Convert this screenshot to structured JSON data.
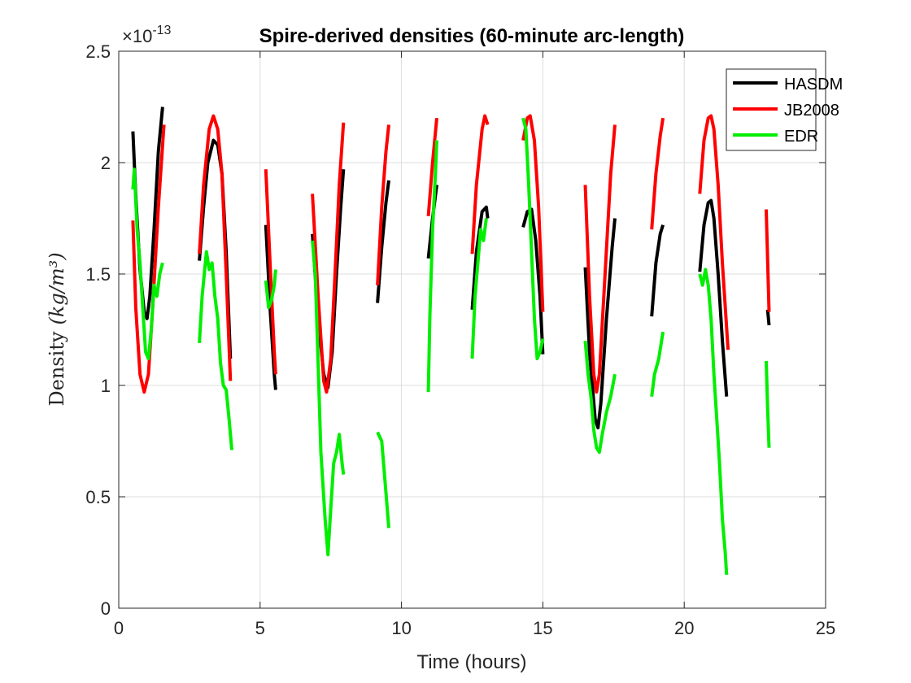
{
  "chart_data": {
    "type": "line",
    "title": "Spire-derived densities (60-minute arc-length)",
    "xlabel": "Time (hours)",
    "ylabel_prefix": "Density",
    "ylabel_units": "(kg/m³)",
    "y_multiplier_base": "×10",
    "y_multiplier_exp": "-13",
    "xlim": [
      0,
      25
    ],
    "ylim": [
      0,
      2.5
    ],
    "xticks": [
      0,
      5,
      10,
      15,
      20,
      25
    ],
    "xtick_labels": [
      "0",
      "5",
      "10",
      "15",
      "20",
      "25"
    ],
    "yticks": [
      0,
      0.5,
      1,
      1.5,
      2,
      2.5
    ],
    "ytick_labels": [
      "0",
      "0.5",
      "1",
      "1.5",
      "2",
      "2.5"
    ],
    "grid": true,
    "legend_position": "top-right",
    "series": [
      {
        "name": "HASDM",
        "color": "#000000",
        "segments": [
          [
            [
              0.5,
              2.14
            ],
            [
              0.6,
              1.85
            ],
            [
              0.75,
              1.52
            ],
            [
              0.9,
              1.33
            ],
            [
              1.0,
              1.3
            ],
            [
              1.1,
              1.4
            ],
            [
              1.25,
              1.7
            ],
            [
              1.4,
              2.05
            ],
            [
              1.55,
              2.25
            ]
          ],
          [
            [
              2.85,
              1.56
            ],
            [
              3.0,
              1.8
            ],
            [
              3.15,
              2.0
            ],
            [
              3.35,
              2.1
            ],
            [
              3.5,
              2.08
            ],
            [
              3.65,
              1.95
            ],
            [
              3.8,
              1.6
            ],
            [
              3.95,
              1.12
            ]
          ],
          [
            [
              5.2,
              1.72
            ],
            [
              5.35,
              1.35
            ],
            [
              5.5,
              1.05
            ],
            [
              5.55,
              0.98
            ]
          ],
          [
            [
              6.85,
              1.68
            ],
            [
              7.05,
              1.3
            ],
            [
              7.25,
              1.05
            ],
            [
              7.4,
              0.99
            ],
            [
              7.55,
              1.15
            ],
            [
              7.7,
              1.5
            ],
            [
              7.85,
              1.8
            ],
            [
              7.95,
              1.97
            ]
          ],
          [
            [
              9.15,
              1.37
            ],
            [
              9.3,
              1.62
            ],
            [
              9.45,
              1.82
            ],
            [
              9.55,
              1.92
            ]
          ],
          [
            [
              10.95,
              1.57
            ],
            [
              11.1,
              1.75
            ],
            [
              11.25,
              1.9
            ]
          ],
          [
            [
              12.5,
              1.34
            ],
            [
              12.65,
              1.6
            ],
            [
              12.85,
              1.78
            ],
            [
              13.0,
              1.8
            ],
            [
              13.05,
              1.75
            ]
          ],
          [
            [
              14.3,
              1.71
            ],
            [
              14.45,
              1.78
            ],
            [
              14.6,
              1.79
            ],
            [
              14.75,
              1.65
            ],
            [
              14.9,
              1.4
            ],
            [
              15.0,
              1.14
            ]
          ],
          [
            [
              16.5,
              1.53
            ],
            [
              16.65,
              1.15
            ],
            [
              16.85,
              0.85
            ],
            [
              16.95,
              0.81
            ],
            [
              17.05,
              0.92
            ],
            [
              17.25,
              1.3
            ],
            [
              17.45,
              1.62
            ],
            [
              17.55,
              1.75
            ]
          ],
          [
            [
              18.85,
              1.31
            ],
            [
              19.0,
              1.55
            ],
            [
              19.15,
              1.68
            ],
            [
              19.25,
              1.72
            ]
          ],
          [
            [
              20.55,
              1.51
            ],
            [
              20.7,
              1.72
            ],
            [
              20.85,
              1.82
            ],
            [
              20.95,
              1.83
            ],
            [
              21.05,
              1.75
            ],
            [
              21.2,
              1.5
            ],
            [
              21.35,
              1.2
            ],
            [
              21.5,
              0.95
            ]
          ],
          [
            [
              22.95,
              1.34
            ],
            [
              23.0,
              1.27
            ]
          ]
        ]
      },
      {
        "name": "JB2008",
        "color": "#ff0000",
        "segments": [
          [
            [
              0.5,
              1.74
            ],
            [
              0.6,
              1.35
            ],
            [
              0.75,
              1.05
            ],
            [
              0.9,
              0.97
            ],
            [
              1.05,
              1.05
            ],
            [
              1.2,
              1.35
            ],
            [
              1.4,
              1.8
            ],
            [
              1.6,
              2.17
            ]
          ],
          [
            [
              2.85,
              1.59
            ],
            [
              3.0,
              1.9
            ],
            [
              3.2,
              2.15
            ],
            [
              3.35,
              2.21
            ],
            [
              3.5,
              2.15
            ],
            [
              3.65,
              1.95
            ],
            [
              3.8,
              1.5
            ],
            [
              3.95,
              1.02
            ]
          ],
          [
            [
              5.2,
              1.97
            ],
            [
              5.35,
              1.55
            ],
            [
              5.5,
              1.15
            ],
            [
              5.55,
              1.05
            ]
          ],
          [
            [
              6.85,
              1.86
            ],
            [
              7.05,
              1.4
            ],
            [
              7.25,
              1.02
            ],
            [
              7.35,
              0.97
            ],
            [
              7.5,
              1.12
            ],
            [
              7.65,
              1.5
            ],
            [
              7.8,
              1.9
            ],
            [
              7.95,
              2.18
            ]
          ],
          [
            [
              9.15,
              1.45
            ],
            [
              9.3,
              1.8
            ],
            [
              9.45,
              2.05
            ],
            [
              9.55,
              2.17
            ]
          ],
          [
            [
              10.95,
              1.76
            ],
            [
              11.1,
              2.0
            ],
            [
              11.25,
              2.2
            ]
          ],
          [
            [
              12.5,
              1.59
            ],
            [
              12.65,
              1.9
            ],
            [
              12.85,
              2.15
            ],
            [
              12.95,
              2.21
            ],
            [
              13.05,
              2.17
            ]
          ],
          [
            [
              14.3,
              2.1
            ],
            [
              14.45,
              2.2
            ],
            [
              14.55,
              2.21
            ],
            [
              14.7,
              2.1
            ],
            [
              14.85,
              1.8
            ],
            [
              15.0,
              1.33
            ]
          ],
          [
            [
              16.5,
              1.9
            ],
            [
              16.65,
              1.4
            ],
            [
              16.8,
              1.05
            ],
            [
              16.9,
              0.97
            ],
            [
              17.0,
              1.05
            ],
            [
              17.2,
              1.5
            ],
            [
              17.4,
              1.95
            ],
            [
              17.55,
              2.17
            ]
          ],
          [
            [
              18.85,
              1.7
            ],
            [
              19.0,
              1.95
            ],
            [
              19.15,
              2.12
            ],
            [
              19.25,
              2.2
            ]
          ],
          [
            [
              20.55,
              1.86
            ],
            [
              20.7,
              2.1
            ],
            [
              20.85,
              2.2
            ],
            [
              20.95,
              2.21
            ],
            [
              21.05,
              2.15
            ],
            [
              21.2,
              1.9
            ],
            [
              21.35,
              1.55
            ],
            [
              21.55,
              1.16
            ]
          ],
          [
            [
              22.9,
              1.79
            ],
            [
              23.0,
              1.33
            ]
          ]
        ]
      },
      {
        "name": "EDR",
        "color": "#00ee00",
        "segments": [
          [
            [
              0.5,
              1.88
            ],
            [
              0.55,
              1.97
            ],
            [
              0.65,
              1.7
            ],
            [
              0.75,
              1.55
            ],
            [
              0.85,
              1.35
            ],
            [
              0.95,
              1.15
            ],
            [
              1.05,
              1.12
            ],
            [
              1.15,
              1.25
            ],
            [
              1.25,
              1.45
            ],
            [
              1.35,
              1.4
            ],
            [
              1.45,
              1.5
            ],
            [
              1.55,
              1.55
            ]
          ],
          [
            [
              2.85,
              1.19
            ],
            [
              2.95,
              1.4
            ],
            [
              3.1,
              1.6
            ],
            [
              3.2,
              1.52
            ],
            [
              3.3,
              1.55
            ],
            [
              3.4,
              1.4
            ],
            [
              3.5,
              1.3
            ],
            [
              3.6,
              1.1
            ],
            [
              3.7,
              1.0
            ],
            [
              3.8,
              0.98
            ],
            [
              3.9,
              0.85
            ],
            [
              4.0,
              0.71
            ]
          ],
          [
            [
              5.2,
              1.47
            ],
            [
              5.3,
              1.35
            ],
            [
              5.4,
              1.38
            ],
            [
              5.5,
              1.45
            ],
            [
              5.55,
              1.52
            ]
          ],
          [
            [
              6.85,
              1.65
            ],
            [
              6.95,
              1.5
            ],
            [
              7.05,
              1.1
            ],
            [
              7.15,
              0.7
            ],
            [
              7.3,
              0.4
            ],
            [
              7.4,
              0.24
            ],
            [
              7.5,
              0.45
            ],
            [
              7.6,
              0.65
            ],
            [
              7.7,
              0.7
            ],
            [
              7.8,
              0.78
            ],
            [
              7.9,
              0.65
            ],
            [
              7.95,
              0.6
            ]
          ],
          [
            [
              9.15,
              0.79
            ],
            [
              9.3,
              0.75
            ],
            [
              9.4,
              0.6
            ],
            [
              9.55,
              0.36
            ]
          ],
          [
            [
              10.95,
              0.97
            ],
            [
              11.0,
              1.3
            ],
            [
              11.1,
              1.7
            ],
            [
              11.2,
              1.95
            ],
            [
              11.25,
              2.1
            ]
          ],
          [
            [
              12.5,
              1.12
            ],
            [
              12.6,
              1.4
            ],
            [
              12.7,
              1.55
            ],
            [
              12.8,
              1.7
            ],
            [
              12.9,
              1.65
            ],
            [
              13.0,
              1.75
            ]
          ],
          [
            [
              14.3,
              2.2
            ],
            [
              14.4,
              2.15
            ],
            [
              14.5,
              1.9
            ],
            [
              14.6,
              1.6
            ],
            [
              14.7,
              1.3
            ],
            [
              14.8,
              1.12
            ],
            [
              14.9,
              1.15
            ],
            [
              15.0,
              1.21
            ]
          ],
          [
            [
              16.5,
              1.2
            ],
            [
              16.6,
              1.05
            ],
            [
              16.7,
              0.95
            ],
            [
              16.8,
              0.8
            ],
            [
              16.9,
              0.72
            ],
            [
              17.0,
              0.7
            ],
            [
              17.1,
              0.78
            ],
            [
              17.25,
              0.88
            ],
            [
              17.4,
              0.95
            ],
            [
              17.55,
              1.05
            ]
          ],
          [
            [
              18.85,
              0.95
            ],
            [
              18.95,
              1.05
            ],
            [
              19.1,
              1.12
            ],
            [
              19.25,
              1.24
            ]
          ],
          [
            [
              20.55,
              1.5
            ],
            [
              20.65,
              1.45
            ],
            [
              20.75,
              1.52
            ],
            [
              20.85,
              1.45
            ],
            [
              20.95,
              1.3
            ],
            [
              21.05,
              1.05
            ],
            [
              21.15,
              0.85
            ],
            [
              21.25,
              0.65
            ],
            [
              21.35,
              0.4
            ],
            [
              21.45,
              0.25
            ],
            [
              21.5,
              0.15
            ]
          ],
          [
            [
              22.9,
              1.11
            ],
            [
              22.95,
              0.9
            ],
            [
              23.0,
              0.72
            ]
          ]
        ]
      }
    ]
  }
}
